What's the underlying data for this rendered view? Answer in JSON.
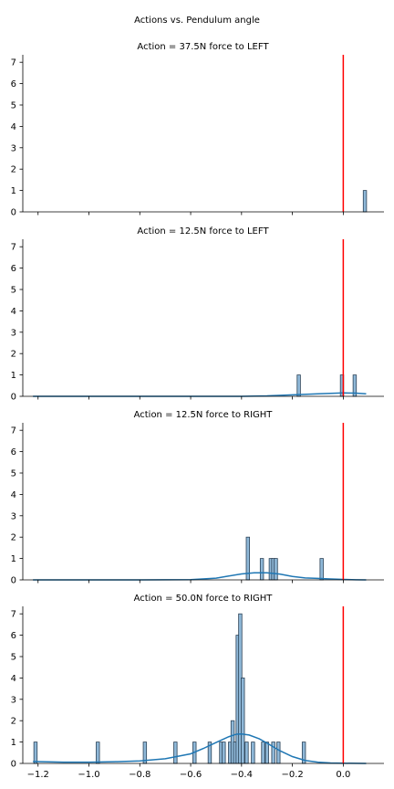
{
  "figure": {
    "suptitle": "Actions vs. Pendulum angle"
  },
  "colors": {
    "bar_fill": "#8fb8d8",
    "bar_edge": "#2b4257",
    "kde_line": "#1f77b4",
    "vline": "#ff0000",
    "axis": "#000000"
  },
  "chart_data": [
    {
      "type": "bar",
      "title": "Action = 37.5N force to LEFT",
      "xlim": [
        -1.26,
        0.16
      ],
      "ylim": [
        0,
        7.35
      ],
      "yticks": [
        0,
        1,
        2,
        3,
        4,
        5,
        6,
        7
      ],
      "xticks_visible": false,
      "vline_x": 0.0,
      "bin_width": 0.0129,
      "bars": [
        {
          "x": 0.085,
          "count": 1
        }
      ],
      "kde": []
    },
    {
      "type": "bar",
      "title": "Action = 12.5N force to LEFT",
      "xlim": [
        -1.26,
        0.16
      ],
      "ylim": [
        0,
        7.35
      ],
      "yticks": [
        0,
        1,
        2,
        3,
        4,
        5,
        6,
        7
      ],
      "xticks_visible": false,
      "vline_x": 0.0,
      "bin_width": 0.0129,
      "bars": [
        {
          "x": -0.175,
          "count": 1
        },
        {
          "x": -0.005,
          "count": 1
        },
        {
          "x": 0.045,
          "count": 1
        }
      ],
      "kde": [
        [
          -1.22,
          0.0
        ],
        [
          -0.9,
          0.0
        ],
        [
          -0.6,
          0.0
        ],
        [
          -0.4,
          0.0
        ],
        [
          -0.3,
          0.02
        ],
        [
          -0.2,
          0.07
        ],
        [
          -0.1,
          0.12
        ],
        [
          0.0,
          0.16
        ],
        [
          0.05,
          0.15
        ],
        [
          0.09,
          0.12
        ]
      ]
    },
    {
      "type": "bar",
      "title": "Action = 12.5N force to RIGHT",
      "xlim": [
        -1.26,
        0.16
      ],
      "ylim": [
        0,
        7.35
      ],
      "yticks": [
        0,
        1,
        2,
        3,
        4,
        5,
        6,
        7
      ],
      "xticks_visible": false,
      "vline_x": 0.0,
      "bin_width": 0.0129,
      "bars": [
        {
          "x": -0.375,
          "count": 2
        },
        {
          "x": -0.32,
          "count": 1
        },
        {
          "x": -0.285,
          "count": 1
        },
        {
          "x": -0.275,
          "count": 1
        },
        {
          "x": -0.265,
          "count": 1
        },
        {
          "x": -0.085,
          "count": 1
        }
      ],
      "kde": [
        [
          -1.22,
          0.0
        ],
        [
          -0.8,
          0.0
        ],
        [
          -0.6,
          0.01
        ],
        [
          -0.5,
          0.08
        ],
        [
          -0.45,
          0.18
        ],
        [
          -0.4,
          0.28
        ],
        [
          -0.35,
          0.33
        ],
        [
          -0.3,
          0.33
        ],
        [
          -0.25,
          0.27
        ],
        [
          -0.2,
          0.16
        ],
        [
          -0.15,
          0.09
        ],
        [
          -0.1,
          0.07
        ],
        [
          -0.05,
          0.04
        ],
        [
          0.0,
          0.02
        ],
        [
          0.05,
          0.005
        ],
        [
          0.09,
          0.0
        ]
      ]
    },
    {
      "type": "bar",
      "title": "Action = 50.0N force to RIGHT",
      "xlim": [
        -1.26,
        0.16
      ],
      "ylim": [
        0,
        7.35
      ],
      "yticks": [
        0,
        1,
        2,
        3,
        4,
        5,
        6,
        7
      ],
      "xticks": [
        -1.2,
        -1.0,
        -0.8,
        -0.6,
        -0.4,
        -0.2,
        0.0
      ],
      "xtick_labels": [
        "−1.2",
        "−1.0",
        "−0.8",
        "−0.6",
        "−0.4",
        "−0.2",
        "0.0"
      ],
      "xticks_visible": true,
      "vline_x": 0.0,
      "bin_width": 0.0129,
      "bars": [
        {
          "x": -1.21,
          "count": 1
        },
        {
          "x": -0.965,
          "count": 1
        },
        {
          "x": -0.78,
          "count": 1
        },
        {
          "x": -0.66,
          "count": 1
        },
        {
          "x": -0.585,
          "count": 1
        },
        {
          "x": -0.525,
          "count": 1
        },
        {
          "x": -0.48,
          "count": 1
        },
        {
          "x": -0.47,
          "count": 1
        },
        {
          "x": -0.445,
          "count": 1
        },
        {
          "x": -0.435,
          "count": 2
        },
        {
          "x": -0.425,
          "count": 1
        },
        {
          "x": -0.415,
          "count": 6
        },
        {
          "x": -0.405,
          "count": 7
        },
        {
          "x": -0.395,
          "count": 4
        },
        {
          "x": -0.38,
          "count": 1
        },
        {
          "x": -0.355,
          "count": 1
        },
        {
          "x": -0.315,
          "count": 1
        },
        {
          "x": -0.3,
          "count": 1
        },
        {
          "x": -0.275,
          "count": 1
        },
        {
          "x": -0.255,
          "count": 1
        },
        {
          "x": -0.155,
          "count": 1
        }
      ],
      "kde": [
        [
          -1.22,
          0.09
        ],
        [
          -1.1,
          0.06
        ],
        [
          -1.0,
          0.06
        ],
        [
          -0.9,
          0.08
        ],
        [
          -0.8,
          0.12
        ],
        [
          -0.7,
          0.22
        ],
        [
          -0.6,
          0.45
        ],
        [
          -0.55,
          0.7
        ],
        [
          -0.5,
          0.98
        ],
        [
          -0.45,
          1.25
        ],
        [
          -0.42,
          1.37
        ],
        [
          -0.4,
          1.38
        ],
        [
          -0.37,
          1.33
        ],
        [
          -0.33,
          1.15
        ],
        [
          -0.3,
          0.95
        ],
        [
          -0.25,
          0.6
        ],
        [
          -0.2,
          0.32
        ],
        [
          -0.15,
          0.14
        ],
        [
          -0.1,
          0.06
        ],
        [
          -0.05,
          0.02
        ],
        [
          0.0,
          0.01
        ],
        [
          0.09,
          0.0
        ]
      ]
    }
  ]
}
